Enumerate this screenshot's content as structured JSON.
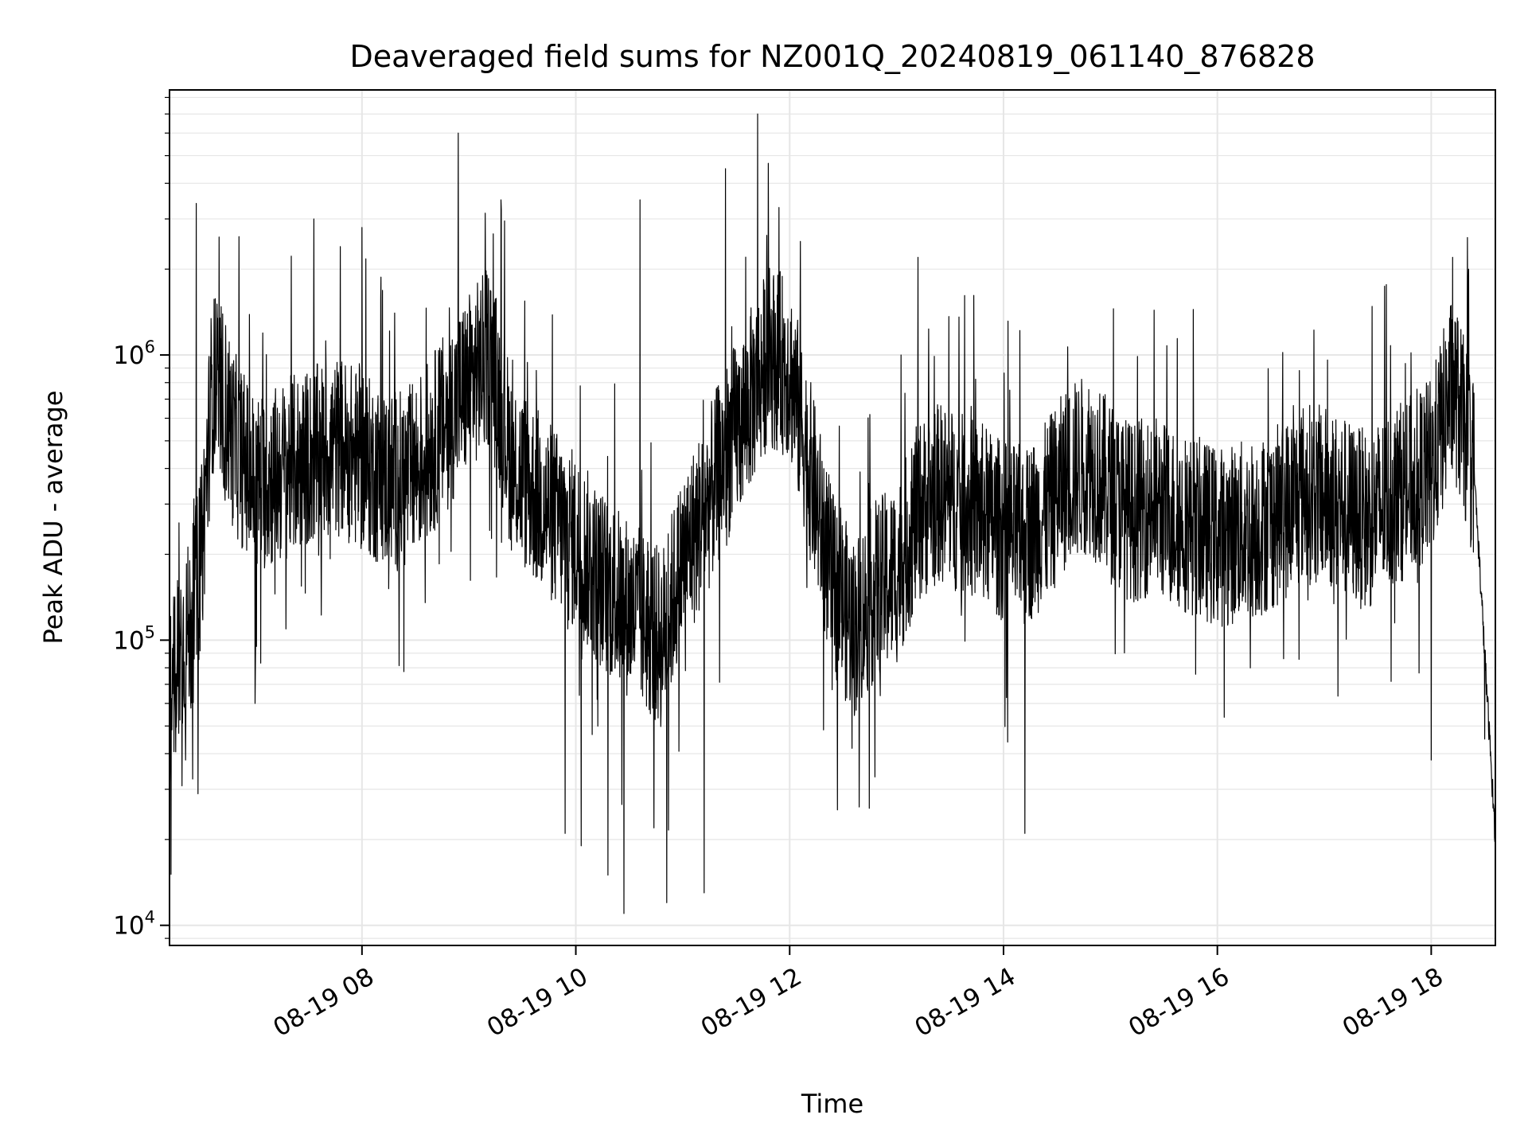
{
  "chart_data": {
    "type": "line",
    "title": "Deaveraged field sums for NZ001Q_20240819_061140_876828",
    "xlabel": "Time",
    "ylabel": "Peak ADU - average",
    "x_axis": {
      "type": "datetime",
      "range": [
        "2024-08-19 06:12",
        "2024-08-19 18:36"
      ],
      "ticks": [
        {
          "value": "2024-08-19 08:00",
          "label": "08-19 08"
        },
        {
          "value": "2024-08-19 10:00",
          "label": "08-19 10"
        },
        {
          "value": "2024-08-19 12:00",
          "label": "08-19 12"
        },
        {
          "value": "2024-08-19 14:00",
          "label": "08-19 14"
        },
        {
          "value": "2024-08-19 16:00",
          "label": "08-19 16"
        },
        {
          "value": "2024-08-19 18:00",
          "label": "08-19 18"
        }
      ],
      "tick_label_rotation_deg": 30
    },
    "y_axis": {
      "scale": "log",
      "range": [
        8500,
        8500000
      ],
      "ticks": [
        {
          "value": 10000,
          "base": "10",
          "exponent": "4"
        },
        {
          "value": 100000,
          "base": "10",
          "exponent": "5"
        },
        {
          "value": 1000000,
          "base": "10",
          "exponent": "6"
        }
      ]
    },
    "grid": true,
    "line_color": "#000000",
    "grid_color": "#e6e6e6",
    "series": [
      {
        "points": [
          [
            "2024-08-19 06:12",
            60000
          ],
          [
            "2024-08-19 06:18",
            95000
          ],
          [
            "2024-08-19 06:24",
            110000
          ],
          [
            "2024-08-19 06:30",
            200000
          ],
          [
            "2024-08-19 06:36",
            800000
          ],
          [
            "2024-08-19 06:42",
            700000
          ],
          [
            "2024-08-19 06:48",
            500000
          ],
          [
            "2024-08-19 06:54",
            420000
          ],
          [
            "2024-08-19 07:00",
            350000
          ],
          [
            "2024-08-19 07:12",
            380000
          ],
          [
            "2024-08-19 07:24",
            420000
          ],
          [
            "2024-08-19 07:36",
            450000
          ],
          [
            "2024-08-19 07:48",
            480000
          ],
          [
            "2024-08-19 08:00",
            420000
          ],
          [
            "2024-08-19 08:12",
            370000
          ],
          [
            "2024-08-19 08:24",
            360000
          ],
          [
            "2024-08-19 08:36",
            450000
          ],
          [
            "2024-08-19 08:48",
            600000
          ],
          [
            "2024-08-19 09:00",
            800000
          ],
          [
            "2024-08-19 09:12",
            1000000
          ],
          [
            "2024-08-19 09:24",
            420000
          ],
          [
            "2024-08-19 09:36",
            330000
          ],
          [
            "2024-08-19 09:48",
            270000
          ],
          [
            "2024-08-19 10:00",
            220000
          ],
          [
            "2024-08-19 10:12",
            170000
          ],
          [
            "2024-08-19 10:24",
            140000
          ],
          [
            "2024-08-19 10:36",
            120000
          ],
          [
            "2024-08-19 10:48",
            100000
          ],
          [
            "2024-08-19 11:00",
            190000
          ],
          [
            "2024-08-19 11:12",
            280000
          ],
          [
            "2024-08-19 11:24",
            450000
          ],
          [
            "2024-08-19 11:36",
            650000
          ],
          [
            "2024-08-19 11:48",
            1000000
          ],
          [
            "2024-08-19 12:00",
            900000
          ],
          [
            "2024-08-19 12:12",
            380000
          ],
          [
            "2024-08-19 12:24",
            160000
          ],
          [
            "2024-08-19 12:36",
            110000
          ],
          [
            "2024-08-19 12:48",
            150000
          ],
          [
            "2024-08-19 13:00",
            170000
          ],
          [
            "2024-08-19 13:12",
            280000
          ],
          [
            "2024-08-19 13:24",
            330000
          ],
          [
            "2024-08-19 13:36",
            300000
          ],
          [
            "2024-08-19 13:48",
            280000
          ],
          [
            "2024-08-19 14:00",
            240000
          ],
          [
            "2024-08-19 14:12",
            230000
          ],
          [
            "2024-08-19 14:24",
            280000
          ],
          [
            "2024-08-19 14:36",
            380000
          ],
          [
            "2024-08-19 14:48",
            420000
          ],
          [
            "2024-08-19 15:00",
            330000
          ],
          [
            "2024-08-19 15:12",
            280000
          ],
          [
            "2024-08-19 15:24",
            300000
          ],
          [
            "2024-08-19 15:36",
            270000
          ],
          [
            "2024-08-19 15:48",
            250000
          ],
          [
            "2024-08-19 16:00",
            230000
          ],
          [
            "2024-08-19 16:12",
            240000
          ],
          [
            "2024-08-19 16:24",
            250000
          ],
          [
            "2024-08-19 16:36",
            280000
          ],
          [
            "2024-08-19 16:48",
            330000
          ],
          [
            "2024-08-19 17:00",
            320000
          ],
          [
            "2024-08-19 17:12",
            290000
          ],
          [
            "2024-08-19 17:24",
            260000
          ],
          [
            "2024-08-19 17:36",
            310000
          ],
          [
            "2024-08-19 17:48",
            350000
          ],
          [
            "2024-08-19 18:00",
            400000
          ],
          [
            "2024-08-19 18:12",
            800000
          ],
          [
            "2024-08-19 18:24",
            400000
          ],
          [
            "2024-08-19 18:30",
            90000
          ],
          [
            "2024-08-19 18:36",
            20000
          ]
        ],
        "peaks": [
          [
            "2024-08-19 06:27",
            3400000
          ],
          [
            "2024-08-19 06:51",
            2600000
          ],
          [
            "2024-08-19 07:33",
            3000000
          ],
          [
            "2024-08-19 08:00",
            2800000
          ],
          [
            "2024-08-19 08:54",
            6000000
          ],
          [
            "2024-08-19 09:18",
            3500000
          ],
          [
            "2024-08-19 10:36",
            3500000
          ],
          [
            "2024-08-19 11:24",
            4500000
          ],
          [
            "2024-08-19 11:42",
            7000000
          ],
          [
            "2024-08-19 11:48",
            4700000
          ],
          [
            "2024-08-19 12:06",
            2500000
          ],
          [
            "2024-08-19 13:12",
            2200000
          ],
          [
            "2024-08-19 18:12",
            2200000
          ],
          [
            "2024-08-19 18:21",
            2000000
          ]
        ],
        "troughs": [
          [
            "2024-08-19 06:21",
            38000
          ],
          [
            "2024-08-19 07:00",
            60000
          ],
          [
            "2024-08-19 09:54",
            21000
          ],
          [
            "2024-08-19 10:03",
            19000
          ],
          [
            "2024-08-19 10:18",
            15000
          ],
          [
            "2024-08-19 10:27",
            11000
          ],
          [
            "2024-08-19 10:51",
            12000
          ],
          [
            "2024-08-19 11:12",
            13000
          ],
          [
            "2024-08-19 12:39",
            26000
          ],
          [
            "2024-08-19 14:12",
            21000
          ],
          [
            "2024-08-19 18:00",
            38000
          ],
          [
            "2024-08-19 18:30",
            45000
          ]
        ]
      }
    ]
  }
}
